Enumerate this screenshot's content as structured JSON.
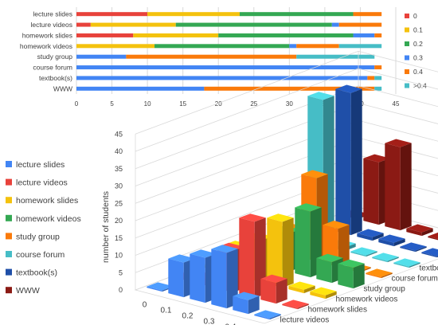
{
  "colors": {
    "0": "#e8423b",
    "0.1": "#f4c20d",
    "0.2": "#34a853",
    "0.3": "#4285f4",
    "0.4": "#fa7a0a",
    ">0.4": "#46bdc6",
    "lecture slides": "#4285f4",
    "lecture videos": "#e8423b",
    "homework slides": "#f4c20d",
    "homework videos": "#34a853",
    "study group": "#fa7a0a",
    "course forum": "#46bdc6",
    "textbook(s)": "#1f4fa8",
    "WWW": "#8b1a14"
  },
  "chart_data": [
    {
      "type": "bar",
      "orientation": "horizontal",
      "stacked": true,
      "categories": [
        "lecture slides",
        "lecture videos",
        "homework slides",
        "homework videos",
        "study group",
        "course forum",
        "textbook(s)",
        "WWW"
      ],
      "series": [
        {
          "name": "0",
          "values": [
            10,
            2,
            8,
            0,
            0,
            0,
            0,
            0
          ]
        },
        {
          "name": "0.1",
          "values": [
            13,
            12,
            12,
            11,
            0,
            0,
            0,
            0
          ]
        },
        {
          "name": "0.2",
          "values": [
            16,
            22,
            19,
            19,
            0,
            0,
            0,
            0
          ]
        },
        {
          "name": "0.3",
          "values": [
            0,
            1,
            3,
            1,
            7,
            42,
            41,
            18
          ]
        },
        {
          "name": "0.4",
          "values": [
            4,
            6,
            1,
            6,
            24,
            1,
            1,
            24
          ]
        },
        {
          "name": ">0.4",
          "values": [
            0,
            0,
            0,
            6,
            11,
            0,
            1,
            1
          ]
        }
      ],
      "xlim": [
        0,
        45
      ],
      "xticks": [
        0,
        5,
        10,
        15,
        20,
        25,
        30,
        35,
        40,
        45
      ],
      "grid": true,
      "legend": "right"
    },
    {
      "type": "bar",
      "style": "3d-column",
      "x_categories": [
        "0",
        "0.1",
        "0.2",
        "0.3",
        "0.4",
        ">0.4"
      ],
      "depth_categories": [
        "lecture slides",
        "lecture videos",
        "homework slides",
        "homework videos",
        "study group",
        "course forum",
        "textbook(s)",
        "WWW"
      ],
      "series": [
        {
          "name": "lecture slides",
          "values": [
            0,
            10,
            13,
            16,
            4,
            0
          ]
        },
        {
          "name": "lecture videos",
          "values": [
            0,
            2,
            12,
            22,
            6,
            0
          ]
        },
        {
          "name": "homework slides",
          "values": [
            0,
            8,
            12,
            19,
            1,
            1
          ]
        },
        {
          "name": "homework videos",
          "values": [
            0,
            1,
            11,
            19,
            6,
            6
          ]
        },
        {
          "name": "study group",
          "values": [
            0,
            7,
            24,
            11,
            0,
            0
          ]
        },
        {
          "name": "course forum",
          "values": [
            0,
            42,
            1,
            0,
            0,
            0
          ]
        },
        {
          "name": "textbook(s)",
          "values": [
            0,
            41,
            1,
            1,
            0,
            0
          ]
        },
        {
          "name": "WWW",
          "values": [
            0,
            18,
            24,
            1,
            0,
            0
          ]
        }
      ],
      "ylabel": "number of students",
      "ylim": [
        0,
        45
      ],
      "yticks": [
        0,
        5,
        10,
        15,
        20,
        25,
        30,
        35,
        40,
        45
      ],
      "legend": "left"
    }
  ]
}
